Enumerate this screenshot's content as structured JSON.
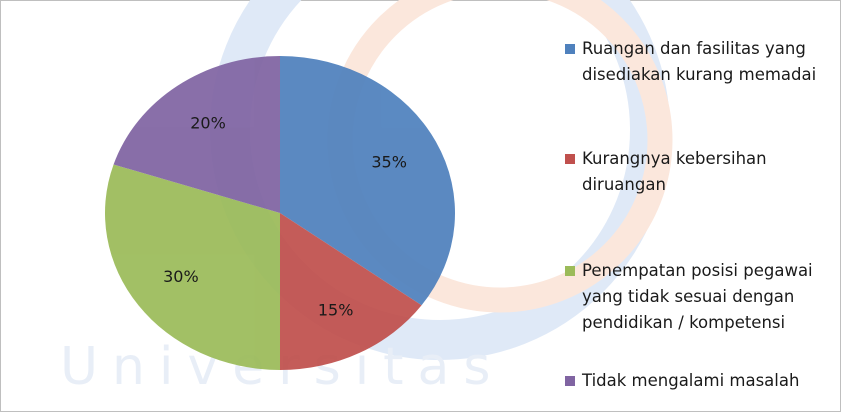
{
  "chart_data": {
    "type": "pie",
    "watermark": "Universitas",
    "categories": [
      "Ruangan dan fasilitas yang disediakan kurang memadai",
      "Kurangnya kebersihan diruangan",
      "Penempatan posisi pegawai yang tidak sesuai dengan pendidikan / kompetensi",
      "Tidak mengalami masalah"
    ],
    "values": [
      35,
      15,
      30,
      20
    ],
    "value_labels": [
      "35%",
      "15%",
      "30%",
      "20%"
    ],
    "colors": [
      "#4f81bd",
      "#c0504d",
      "#9bbb59",
      "#8064a2"
    ],
    "legend": "right"
  }
}
